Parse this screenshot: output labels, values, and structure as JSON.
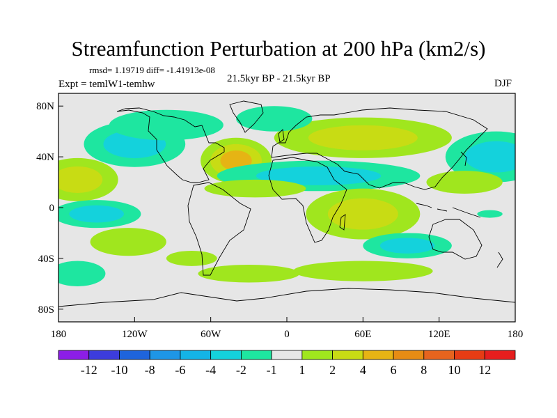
{
  "chart_data": {
    "type": "heatmap",
    "title": "Streamfunction Perturbation at 200 hPa (km2/s)",
    "stats_text": "rmsd= 1.19719 diff= -1.41913e-08",
    "experiment": "Expt = temlW1-temhw",
    "period": "21.5kyr BP - 21.5kyr BP",
    "season": "DJF",
    "x_ticks": [
      "180",
      "120W",
      "60W",
      "0",
      "60E",
      "120E",
      "180"
    ],
    "y_ticks": [
      "80N",
      "40N",
      "0",
      "40S",
      "80S"
    ],
    "xlim": [
      -180,
      180
    ],
    "ylim": [
      -90,
      90
    ],
    "colorbar": {
      "labels": [
        "-12",
        "-10",
        "-8",
        "-6",
        "-4",
        "-2",
        "-1",
        "1",
        "2",
        "4",
        "6",
        "8",
        "10",
        "12"
      ],
      "colors": [
        "#8c1ee6",
        "#3c3cdc",
        "#1e64dc",
        "#1e96e6",
        "#14b4e6",
        "#14d2dc",
        "#1ee6a0",
        "#e6e6e6",
        "#a0e61e",
        "#c8dc14",
        "#e6b414",
        "#e68c14",
        "#e6641e",
        "#e63c14",
        "#e61e1e"
      ]
    },
    "anomaly_regions": [
      {
        "lon": -165,
        "lat": 22,
        "lon_radius": 32,
        "lat_radius": 17,
        "value": 3.5
      },
      {
        "lon": -120,
        "lat": 50,
        "lon_radius": 40,
        "lat_radius": 18,
        "value": -2.2
      },
      {
        "lon": -95,
        "lat": 65,
        "lon_radius": 45,
        "lat_radius": 12,
        "value": -1.6
      },
      {
        "lon": -150,
        "lat": -5,
        "lon_radius": 35,
        "lat_radius": 11,
        "value": -3.5
      },
      {
        "lon": -125,
        "lat": -27,
        "lon_radius": 30,
        "lat_radius": 11,
        "value": 1.8
      },
      {
        "lon": -40,
        "lat": 37,
        "lon_radius": 28,
        "lat_radius": 18,
        "value": 4.5
      },
      {
        "lon": 25,
        "lat": 25,
        "lon_radius": 80,
        "lat_radius": 12,
        "value": -2.5
      },
      {
        "lon": -25,
        "lat": 15,
        "lon_radius": 40,
        "lat_radius": 7,
        "value": 1.4
      },
      {
        "lon": 60,
        "lat": 55,
        "lon_radius": 70,
        "lat_radius": 16,
        "value": 3.0
      },
      {
        "lon": -10,
        "lat": 70,
        "lon_radius": 30,
        "lat_radius": 10,
        "value": -1.4
      },
      {
        "lon": 165,
        "lat": 40,
        "lon_radius": 40,
        "lat_radius": 20,
        "value": -2.5
      },
      {
        "lon": 140,
        "lat": 20,
        "lon_radius": 30,
        "lat_radius": 9,
        "value": 1.5
      },
      {
        "lon": 60,
        "lat": -5,
        "lon_radius": 45,
        "lat_radius": 20,
        "value": 2.8
      },
      {
        "lon": 95,
        "lat": -30,
        "lon_radius": 35,
        "lat_radius": 10,
        "value": -3.0
      },
      {
        "lon": 60,
        "lat": -50,
        "lon_radius": 55,
        "lat_radius": 8,
        "value": 1.5
      },
      {
        "lon": -75,
        "lat": -40,
        "lon_radius": 20,
        "lat_radius": 6,
        "value": 1.4
      },
      {
        "lon": -30,
        "lat": -52,
        "lon_radius": 40,
        "lat_radius": 7,
        "value": 1.4
      },
      {
        "lon": -165,
        "lat": -52,
        "lon_radius": 22,
        "lat_radius": 10,
        "value": -1.8
      },
      {
        "lon": 160,
        "lat": -5,
        "lon_radius": 10,
        "lat_radius": 3,
        "value": -1.2
      }
    ]
  }
}
